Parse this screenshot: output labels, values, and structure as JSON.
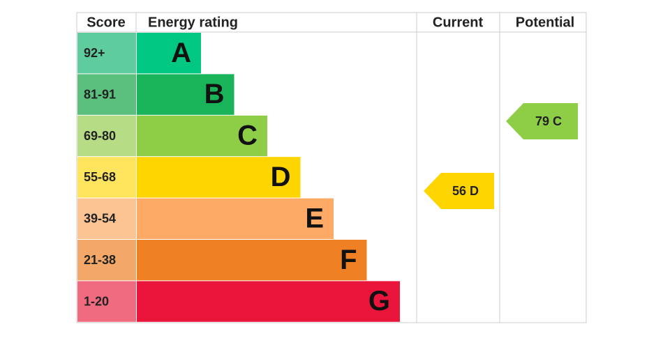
{
  "header": [
    "Score",
    "Energy rating",
    "Current",
    "Potential"
  ],
  "bands": [
    {
      "score": "92+",
      "letter": "A",
      "color": "#00c781",
      "score_color": "#5ecc9c"
    },
    {
      "score": "81-91",
      "letter": "B",
      "color": "#19b459",
      "score_color": "#5bbf7d"
    },
    {
      "score": "69-80",
      "letter": "C",
      "color": "#8dce46",
      "score_color": "#b6dd85"
    },
    {
      "score": "55-68",
      "letter": "D",
      "color": "#ffd500",
      "score_color": "#ffe45e"
    },
    {
      "score": "39-54",
      "letter": "E",
      "color": "#fcaa65",
      "score_color": "#fcc493"
    },
    {
      "score": "21-38",
      "letter": "F",
      "color": "#ef8023",
      "score_color": "#f3a869"
    },
    {
      "score": "1-20",
      "letter": "G",
      "color": "#e9153b",
      "score_color": "#f06a80"
    }
  ],
  "current": {
    "label": "56 D",
    "color": "#ffd500"
  },
  "potential": {
    "label": "79 C",
    "color": "#8dce46"
  }
}
